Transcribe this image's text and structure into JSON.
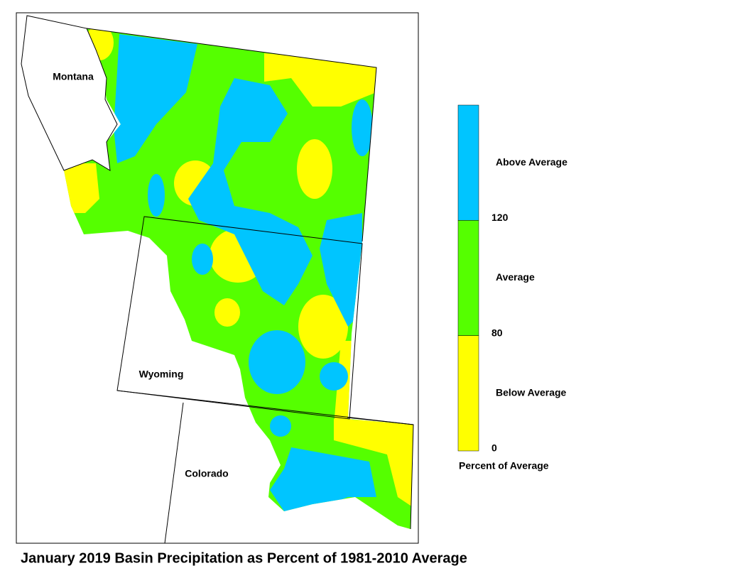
{
  "title": "January 2019 Basin Precipitation as Percent of 1981-2010 Average",
  "map": {
    "labels": [
      "Montana",
      "Wyoming",
      "Colorado"
    ]
  },
  "legend": {
    "title": "Percent of Average",
    "classes": [
      {
        "label": "Above Average",
        "color": "#00c5ff"
      },
      {
        "label": "Average",
        "color": "#55ff00"
      },
      {
        "label": "Below Average",
        "color": "#ffff00"
      }
    ],
    "breaks": [
      120,
      80,
      0
    ]
  }
}
